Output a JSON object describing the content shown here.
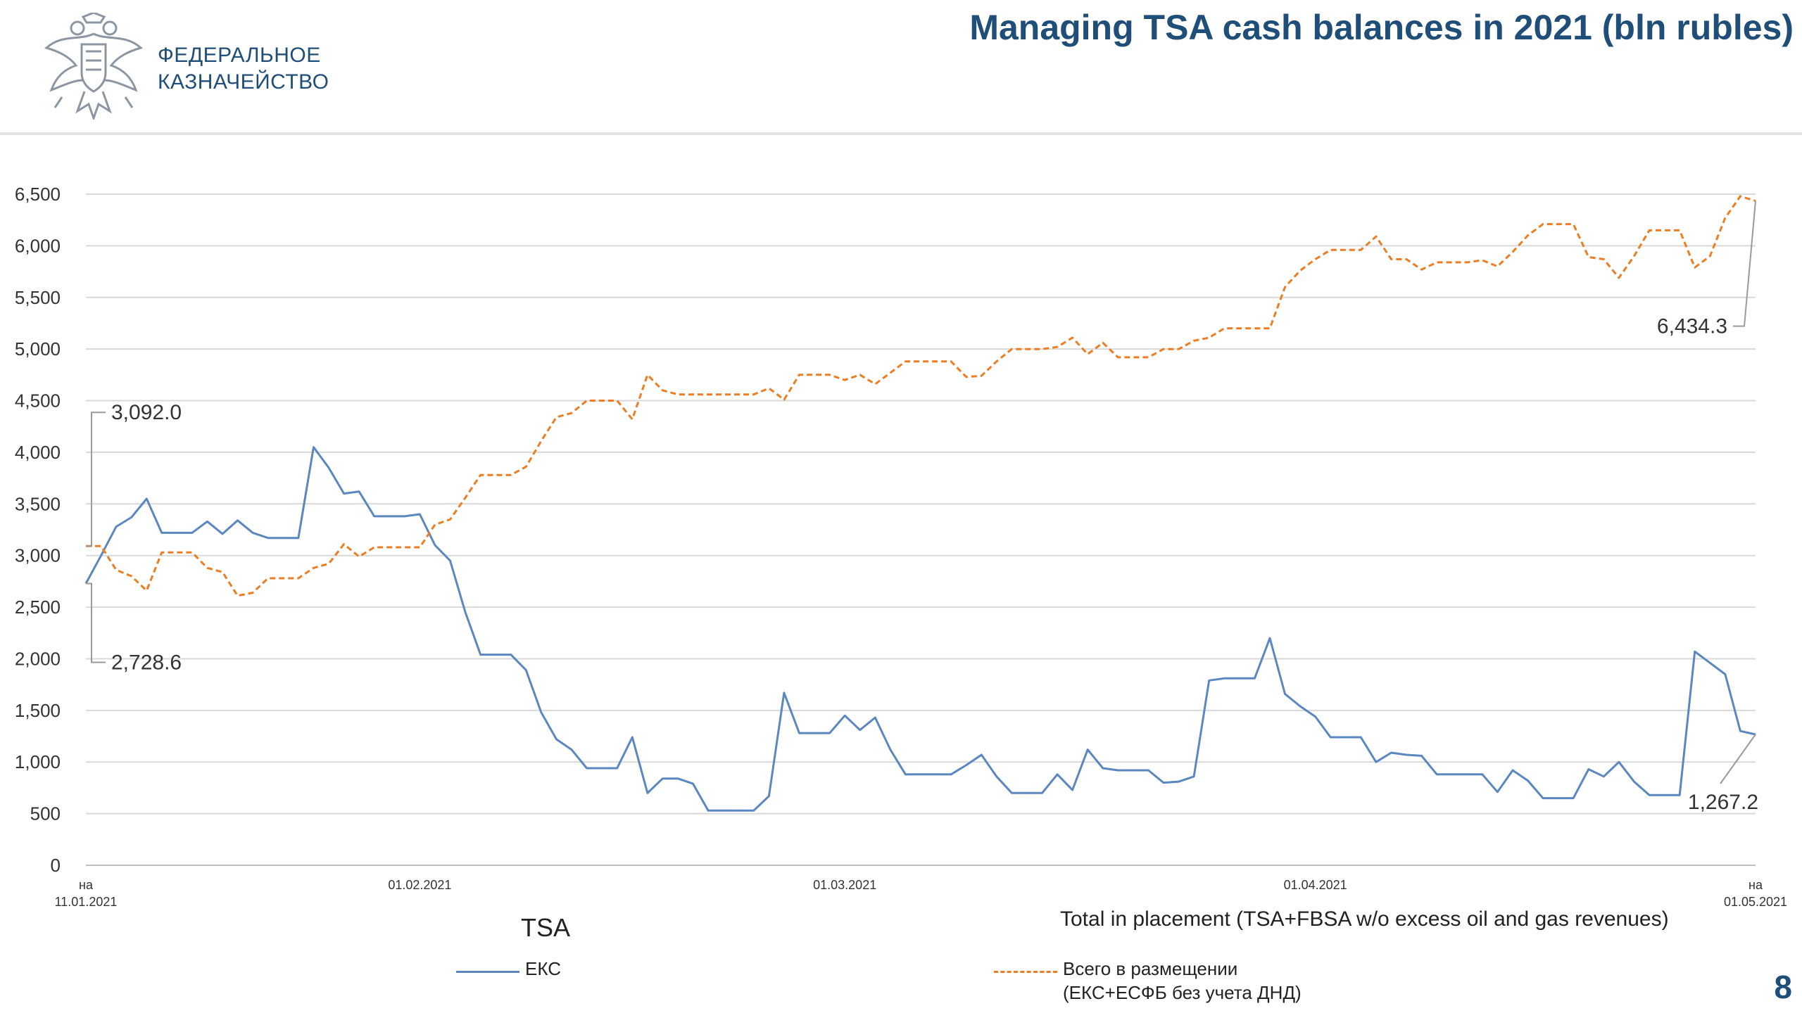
{
  "header": {
    "org_line1": "ФЕДЕРАЛЬНОЕ",
    "org_line2": "КАЗНАЧЕЙСТВО",
    "title": "Managing TSA cash balances in 2021 (bln rubles)"
  },
  "legend": {
    "tsa_title": "TSA",
    "tsa_label": "ЕКС",
    "total_title": "Total in placement (TSA+FBSA w/o excess oil and gas revenues)",
    "total_label_line1": "Всего в размещении",
    "total_label_line2": "(ЕКС+ЕСФБ без учета ДНД)"
  },
  "page_number": "8",
  "colors": {
    "brand": "#1f4e79",
    "tsa": "#5b87c1",
    "total": "#ec7d22",
    "grid": "#d9d9d9"
  },
  "chart_data": {
    "type": "line",
    "ylim": [
      0,
      6500
    ],
    "y_ticks": [
      "0",
      "500",
      "1,000",
      "1,500",
      "2,000",
      "2,500",
      "3,000",
      "3,500",
      "4,000",
      "4,500",
      "5,000",
      "5,500",
      "6,000",
      "6,500"
    ],
    "x_ticks": [
      {
        "index": 0,
        "line1": "на",
        "line2": "11.01.2021"
      },
      {
        "index": 22,
        "line1": "",
        "line2": "01.02.2021"
      },
      {
        "index": 50,
        "line1": "",
        "line2": "01.03.2021"
      },
      {
        "index": 81,
        "line1": "",
        "line2": "01.04.2021"
      },
      {
        "index": 110,
        "line1": "на",
        "line2": "01.05.2021"
      }
    ],
    "series": [
      {
        "name": "ЕКС",
        "style": "solid",
        "values": [
          2728.6,
          3000,
          3280,
          3370,
          3550,
          3220,
          3220,
          3220,
          3330,
          3210,
          3340,
          3220,
          3170,
          3170,
          3170,
          4050,
          3850,
          3600,
          3620,
          3380,
          3380,
          3380,
          3400,
          3100,
          2950,
          2450,
          2040,
          2040,
          2040,
          1890,
          1480,
          1220,
          1120,
          940,
          940,
          940,
          1240,
          700,
          840,
          840,
          790,
          530,
          530,
          530,
          530,
          670,
          1670,
          1280,
          1280,
          1280,
          1450,
          1310,
          1430,
          1120,
          880,
          880,
          880,
          880,
          970,
          1070,
          860,
          700,
          700,
          700,
          880,
          730,
          1120,
          940,
          920,
          920,
          920,
          800,
          810,
          860,
          1790,
          1810,
          1810,
          1810,
          2200,
          1660,
          1540,
          1440,
          1240,
          1240,
          1240,
          1000,
          1090,
          1070,
          1060,
          880,
          880,
          880,
          880,
          710,
          920,
          820,
          650,
          650,
          650,
          930,
          860,
          1000,
          810,
          680,
          680,
          680,
          2070,
          1960,
          1850,
          1300,
          1267.2
        ]
      },
      {
        "name": "Всего в размещении (ЕКС+ЕСФБ без учета ДНД)",
        "style": "dashed",
        "values": [
          3092.0,
          3092,
          2860,
          2800,
          2660,
          3030,
          3030,
          3030,
          2880,
          2840,
          2610,
          2640,
          2780,
          2780,
          2780,
          2880,
          2920,
          3110,
          2990,
          3080,
          3080,
          3080,
          3080,
          3300,
          3350,
          3560,
          3780,
          3780,
          3780,
          3860,
          4110,
          4340,
          4380,
          4500,
          4500,
          4500,
          4320,
          4750,
          4600,
          4560,
          4560,
          4560,
          4560,
          4560,
          4560,
          4620,
          4510,
          4750,
          4750,
          4750,
          4700,
          4750,
          4660,
          4770,
          4880,
          4880,
          4880,
          4880,
          4730,
          4740,
          4880,
          5000,
          5000,
          5000,
          5020,
          5110,
          4950,
          5060,
          4920,
          4920,
          4920,
          5000,
          5000,
          5080,
          5110,
          5200,
          5200,
          5200,
          5200,
          5600,
          5760,
          5870,
          5960,
          5960,
          5960,
          6090,
          5870,
          5870,
          5770,
          5840,
          5840,
          5840,
          5860,
          5800,
          5940,
          6100,
          6210,
          6210,
          6210,
          5890,
          5870,
          5690,
          5900,
          6150,
          6150,
          6150,
          5790,
          5900,
          6270,
          6480,
          6434.3
        ]
      }
    ],
    "annotations": [
      {
        "series": 1,
        "index": 0,
        "text": "3,092.0"
      },
      {
        "series": 0,
        "index": 0,
        "text": "2,728.6"
      },
      {
        "series": 1,
        "index": 110,
        "text": "6,434.3"
      },
      {
        "series": 0,
        "index": 110,
        "text": "1,267.2"
      }
    ]
  }
}
